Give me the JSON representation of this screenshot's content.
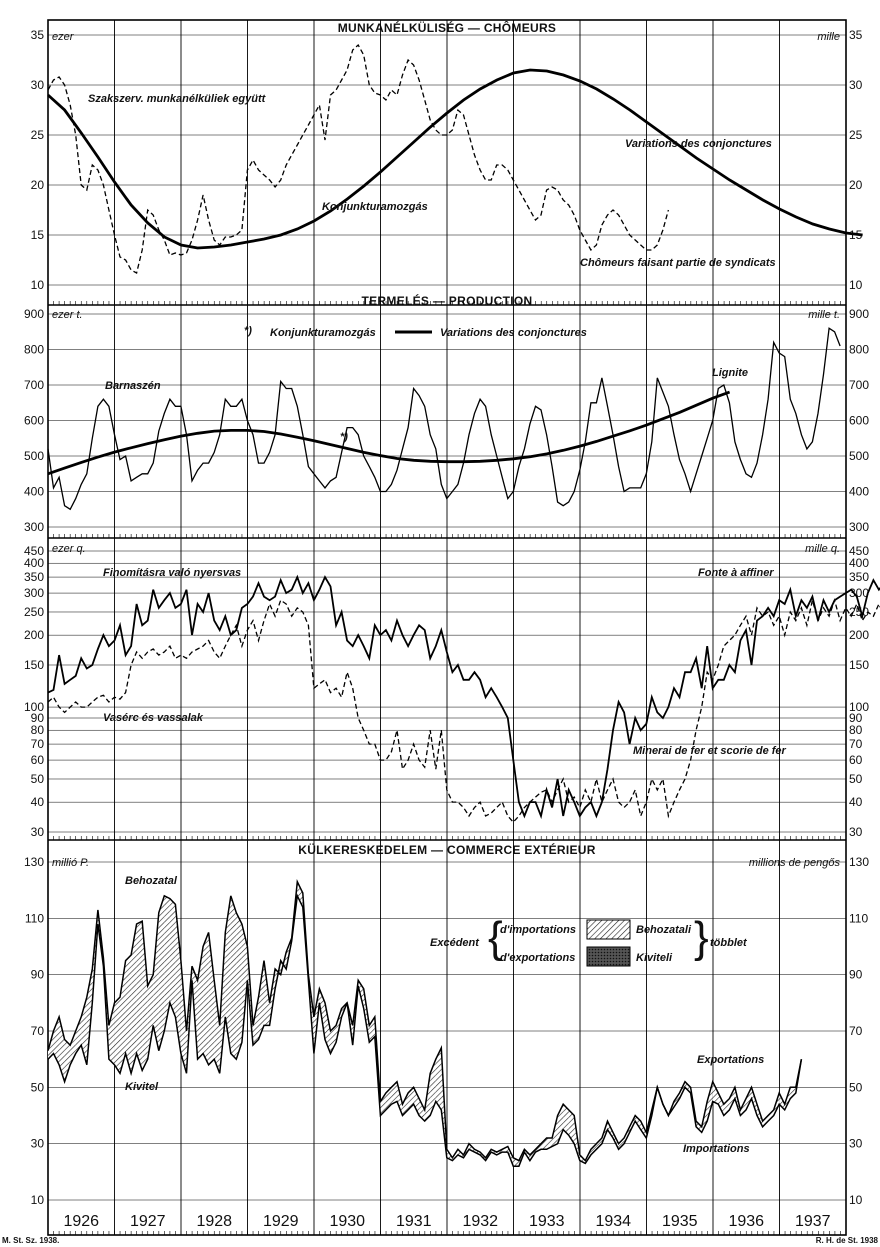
{
  "footer": {
    "left": "M. St. Sz. 1938.",
    "right": "R. H. de St. 1938"
  },
  "years": [
    "1926",
    "1927",
    "1928",
    "1929",
    "1930",
    "1931",
    "1932",
    "1933",
    "1934",
    "1935",
    "1936",
    "1937"
  ],
  "chart_data": [
    {
      "type": "line",
      "title": "MUNKANÉLKÜLISÉG — CHÔMEURS",
      "unit_left": "ezer",
      "unit_right": "mille",
      "ylim": [
        10,
        35
      ],
      "yticks": [
        10,
        15,
        20,
        25,
        30,
        35
      ],
      "annotations": [
        "Szakszerv. munkanélküliek együtt",
        "Konjunkturamozgás",
        "Variations des conjonctures",
        "Chômeurs faisant partie de syndicats"
      ],
      "series": [
        {
          "style": "dashed",
          "x_start": 1926.0,
          "step": 0.0833,
          "values": [
            29.5,
            30.5,
            30.8,
            30.0,
            28.0,
            25.0,
            20.0,
            19.5,
            22.0,
            21.5,
            20.0,
            17.5,
            15.0,
            12.8,
            12.5,
            11.5,
            11.2,
            13.5,
            17.5,
            17.0,
            15.5,
            14.5,
            13.0,
            13.2,
            13.0,
            13.2,
            14.5,
            16.5,
            19.0,
            16.5,
            14.5,
            14.0,
            14.8,
            14.8,
            15.0,
            15.5,
            21.5,
            22.5,
            21.5,
            21.0,
            20.5,
            19.8,
            20.5,
            22.0,
            23.0,
            24.0,
            25.0,
            26.0,
            27.0,
            28.0,
            24.5,
            29.0,
            29.5,
            30.5,
            31.5,
            33.5,
            34.0,
            33.0,
            30.0,
            29.2,
            29.0,
            28.5,
            29.5,
            29.0,
            31.0,
            32.5,
            32.0,
            30.5,
            28.5,
            26.5,
            25.5,
            25.0,
            25.0,
            25.5,
            27.5,
            27.0,
            25.0,
            23.0,
            21.5,
            20.5,
            20.5,
            22.0,
            22.0,
            21.5,
            20.5,
            19.5,
            18.5,
            17.5,
            16.5,
            17.0,
            19.5,
            19.8,
            19.5,
            18.5,
            18.0,
            17.0,
            15.5,
            14.5,
            13.5,
            14.0,
            16.0,
            17.0,
            17.5,
            17.0,
            16.0,
            15.0,
            14.5,
            14.0,
            13.5,
            13.5,
            14.0,
            15.5,
            17.5
          ]
        },
        {
          "style": "solid",
          "x_start": 1926.0,
          "step": 0.25,
          "values": [
            29.0,
            27.5,
            25.2,
            22.8,
            20.3,
            18.0,
            16.2,
            14.8,
            14.0,
            13.7,
            13.8,
            14.0,
            14.3,
            14.6,
            15.0,
            15.6,
            16.4,
            17.4,
            18.6,
            19.9,
            21.3,
            22.8,
            24.3,
            25.8,
            27.2,
            28.5,
            29.6,
            30.5,
            31.2,
            31.5,
            31.4,
            31.0,
            30.4,
            29.6,
            28.6,
            27.5,
            26.3,
            25.1,
            23.9,
            22.7,
            21.6,
            20.5,
            19.5,
            18.5,
            17.6,
            16.8,
            16.1,
            15.6,
            15.2,
            15.0
          ]
        }
      ]
    },
    {
      "type": "line",
      "title": "TERMELÉS — PRODUCTION",
      "unit_left": "ezer t.",
      "unit_right": "mille t.",
      "ylim": [
        300,
        900
      ],
      "yticks": [
        300,
        400,
        500,
        600,
        700,
        800,
        900
      ],
      "legend": {
        "marker": "*)",
        "label_left": "Konjunkturamozgás",
        "label_right": "Variations des conjonctures"
      },
      "annotations": [
        "Barnaszén",
        "Lignite",
        "*)"
      ],
      "series": [
        {
          "style": "solid-thin",
          "x_start": 1926.0,
          "step": 0.0833,
          "values": [
            520,
            410,
            440,
            360,
            350,
            380,
            420,
            450,
            550,
            640,
            660,
            640,
            560,
            490,
            500,
            430,
            440,
            450,
            450,
            480,
            570,
            620,
            660,
            640,
            640,
            560,
            430,
            460,
            480,
            480,
            510,
            560,
            660,
            640,
            640,
            660,
            600,
            560,
            480,
            480,
            510,
            560,
            710,
            690,
            690,
            640,
            560,
            470,
            450,
            430,
            410,
            430,
            440,
            510,
            580,
            580,
            560,
            500,
            470,
            440,
            400,
            400,
            420,
            460,
            520,
            580,
            690,
            670,
            640,
            560,
            520,
            420,
            380,
            400,
            420,
            480,
            560,
            620,
            660,
            640,
            560,
            500,
            440,
            380,
            400,
            470,
            520,
            590,
            640,
            630,
            560,
            470,
            370,
            360,
            370,
            400,
            460,
            540,
            650,
            650,
            720,
            640,
            560,
            470,
            400,
            410,
            410,
            410,
            450,
            540,
            720,
            680,
            640,
            560,
            490,
            450,
            400,
            450,
            500,
            550,
            600,
            690,
            700,
            650,
            540,
            490,
            450,
            440,
            480,
            560,
            660,
            820,
            790,
            780,
            660,
            620,
            560,
            520,
            540,
            620,
            730,
            860,
            850,
            810
          ]
        },
        {
          "style": "solid-thick",
          "x_start": 1926.0,
          "step": 0.25,
          "values": [
            450,
            466,
            482,
            497,
            511,
            523,
            535,
            546,
            556,
            564,
            570,
            572,
            572,
            569,
            562,
            553,
            543,
            532,
            521,
            510,
            501,
            493,
            488,
            485,
            484,
            484,
            485,
            488,
            492,
            498,
            506,
            516,
            528,
            541,
            556,
            571,
            587,
            605,
            623,
            643,
            663,
            680
          ]
        }
      ]
    },
    {
      "type": "line",
      "scale": "log",
      "unit_left": "ezer q.",
      "unit_right": "mille q.",
      "ylim": [
        30,
        450
      ],
      "yticks": [
        30,
        40,
        50,
        60,
        70,
        80,
        90,
        100,
        150,
        200,
        250,
        300,
        350,
        400,
        450
      ],
      "annotations": [
        "Finomításra való nyersvas",
        "Fonte à affiner",
        "Vasérc és vassalak",
        "Minerai de fer et scorie de fer"
      ],
      "series": [
        {
          "style": "solid",
          "x_start": 1926.0,
          "step": 0.0833,
          "values": [
            115,
            118,
            165,
            125,
            130,
            135,
            160,
            145,
            150,
            175,
            200,
            180,
            190,
            220,
            165,
            180,
            270,
            220,
            230,
            310,
            260,
            280,
            300,
            260,
            270,
            310,
            200,
            270,
            250,
            300,
            230,
            210,
            240,
            200,
            210,
            260,
            270,
            290,
            330,
            290,
            280,
            290,
            340,
            300,
            310,
            350,
            300,
            330,
            280,
            310,
            350,
            320,
            220,
            250,
            190,
            180,
            200,
            180,
            160,
            220,
            200,
            210,
            190,
            230,
            200,
            180,
            200,
            220,
            210,
            160,
            180,
            210,
            170,
            140,
            150,
            130,
            130,
            140,
            130,
            110,
            120,
            110,
            100,
            90,
            60,
            40,
            35,
            40,
            40,
            35,
            45,
            38,
            50,
            35,
            45,
            40,
            35,
            38,
            40,
            35,
            40,
            55,
            80,
            105,
            95,
            70,
            90,
            80,
            85,
            110,
            95,
            90,
            100,
            120,
            110,
            140,
            140,
            160,
            120,
            180,
            120,
            130,
            130,
            150,
            140,
            190,
            210,
            150,
            230,
            240,
            260,
            240,
            280,
            270,
            310,
            240,
            280,
            260,
            290,
            230,
            280,
            250,
            280,
            290,
            300,
            310,
            290,
            240,
            300,
            340,
            310,
            330,
            320,
            280,
            300,
            320,
            340,
            300,
            310
          ]
        },
        {
          "style": "dashed",
          "x_start": 1926.0,
          "step": 0.0833,
          "values": [
            105,
            110,
            100,
            95,
            100,
            105,
            100,
            100,
            105,
            110,
            112,
            105,
            110,
            108,
            115,
            150,
            170,
            160,
            170,
            175,
            165,
            170,
            180,
            160,
            165,
            160,
            170,
            175,
            180,
            190,
            170,
            160,
            180,
            200,
            220,
            180,
            210,
            230,
            190,
            230,
            270,
            240,
            280,
            270,
            240,
            260,
            250,
            220,
            120,
            125,
            130,
            115,
            120,
            110,
            140,
            120,
            90,
            80,
            70,
            70,
            60,
            60,
            65,
            80,
            55,
            60,
            70,
            60,
            56,
            80,
            55,
            80,
            45,
            40,
            40,
            38,
            35,
            38,
            40,
            35,
            36,
            38,
            40,
            35,
            33,
            35,
            38,
            40,
            42,
            44,
            45,
            40,
            45,
            50,
            40,
            42,
            38,
            45,
            40,
            50,
            40,
            45,
            50,
            40,
            38,
            40,
            45,
            35,
            40,
            50,
            45,
            50,
            35,
            40,
            45,
            50,
            60,
            80,
            100,
            140,
            130,
            150,
            180,
            190,
            200,
            220,
            240,
            200,
            260,
            240,
            250,
            220,
            240,
            200,
            250,
            230,
            260,
            220,
            280,
            230,
            260,
            240,
            280,
            230,
            260,
            240,
            270,
            230,
            250,
            240,
            270,
            240,
            260,
            240,
            280
          ]
        }
      ]
    },
    {
      "type": "area",
      "title": "KÜLKERESKEDELEM — COMMERCE EXTÉRIEUR",
      "unit_left": "millió P.",
      "unit_right": "millions de pengős",
      "ylim": [
        10,
        130
      ],
      "yticks": [
        10,
        30,
        50,
        70,
        90,
        110,
        130
      ],
      "legend": {
        "left": "Excédent",
        "rows": [
          "d'importations",
          "d'exportations"
        ],
        "swatches": [
          "Behozatali",
          "Kiviteli"
        ],
        "right": "többlet"
      },
      "annotations": [
        "Behozatal",
        "Kivitel",
        "Exportations",
        "Importations"
      ],
      "series": [
        {
          "name": "Behozatal",
          "x_start": 1926.0,
          "step": 0.0833,
          "values": [
            63,
            70,
            75,
            67,
            65,
            70,
            75,
            82,
            92,
            113,
            96,
            72,
            80,
            82,
            95,
            97,
            108,
            109,
            86,
            90,
            112,
            118,
            117,
            115,
            95,
            70,
            93,
            88,
            100,
            105,
            88,
            72,
            105,
            118,
            112,
            108,
            100,
            72,
            82,
            95,
            80,
            92,
            90,
            98,
            103,
            123,
            119,
            90,
            75,
            85,
            80,
            70,
            72,
            78,
            80,
            72,
            88,
            85,
            72,
            75,
            45,
            48,
            50,
            52,
            44,
            48,
            50,
            46,
            42,
            55,
            60,
            64,
            28,
            25,
            28,
            26,
            30,
            28,
            27,
            25,
            28,
            27,
            28,
            29,
            25,
            24,
            28,
            26,
            28,
            30,
            32,
            32,
            40,
            44,
            42,
            40,
            26,
            24,
            28,
            30,
            32,
            38,
            34,
            30,
            32,
            36,
            40,
            38,
            34,
            42,
            50,
            44,
            40,
            45,
            48,
            52,
            50,
            38,
            36,
            45,
            52,
            48,
            44,
            46,
            50,
            42,
            46,
            50,
            44,
            38,
            40,
            42,
            48,
            44,
            50,
            50,
            60
          ]
        },
        {
          "name": "Kivitel",
          "x_start": 1926.0,
          "step": 0.0833,
          "values": [
            60,
            62,
            58,
            52,
            58,
            62,
            65,
            58,
            80,
            108,
            93,
            60,
            58,
            55,
            62,
            55,
            62,
            56,
            60,
            72,
            63,
            70,
            80,
            75,
            62,
            55,
            88,
            60,
            62,
            58,
            60,
            55,
            75,
            62,
            60,
            66,
            88,
            65,
            67,
            72,
            72,
            85,
            95,
            92,
            102,
            118,
            114,
            88,
            62,
            80,
            67,
            62,
            66,
            75,
            80,
            65,
            86,
            78,
            66,
            68,
            40,
            42,
            44,
            45,
            40,
            42,
            44,
            40,
            38,
            40,
            45,
            42,
            25,
            24,
            26,
            25,
            28,
            27,
            26,
            24,
            27,
            26,
            27,
            27,
            22,
            22,
            27,
            24,
            27,
            28,
            28,
            29,
            30,
            35,
            33,
            30,
            24,
            23,
            26,
            28,
            30,
            35,
            32,
            28,
            30,
            34,
            38,
            35,
            32,
            40,
            50,
            44,
            40,
            43,
            46,
            50,
            48,
            36,
            34,
            38,
            45,
            44,
            40,
            42,
            46,
            40,
            42,
            46,
            40,
            36,
            38,
            40,
            44,
            42,
            46,
            48,
            60
          ]
        }
      ]
    }
  ]
}
